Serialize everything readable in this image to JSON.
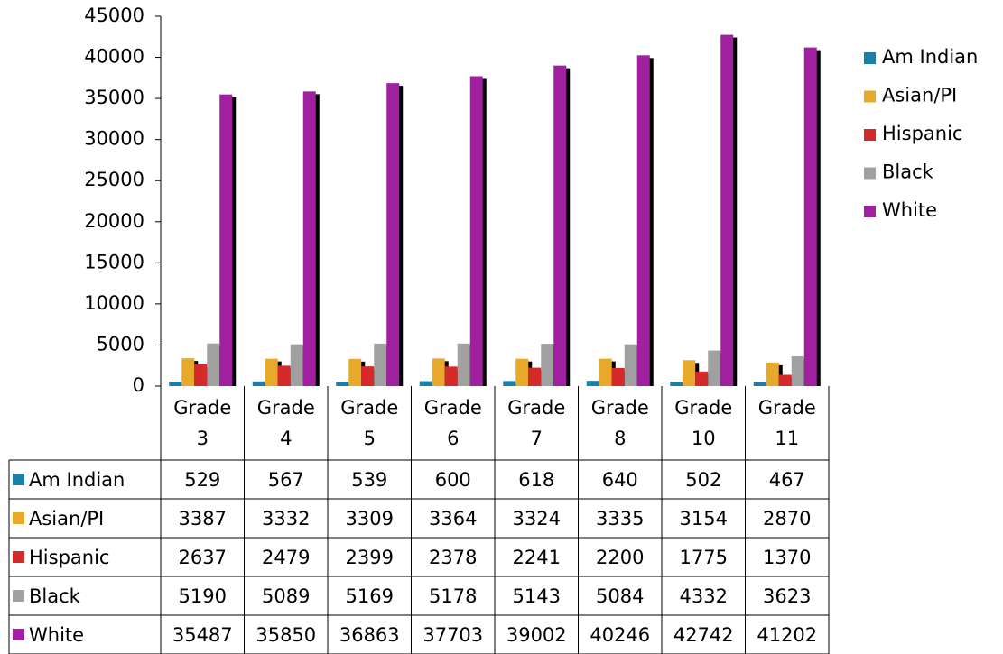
{
  "chart_data": {
    "type": "bar",
    "categories": [
      "Grade 3",
      "Grade 4",
      "Grade 5",
      "Grade 6",
      "Grade 7",
      "Grade 8",
      "Grade 10",
      "Grade 11"
    ],
    "series": [
      {
        "name": "Am Indian",
        "color": "#1b7fab",
        "values": [
          529,
          567,
          539,
          600,
          618,
          640,
          502,
          467
        ]
      },
      {
        "name": "Asian/PI",
        "color": "#e8a82a",
        "values": [
          3387,
          3332,
          3309,
          3364,
          3324,
          3335,
          3154,
          2870
        ]
      },
      {
        "name": "Hispanic",
        "color": "#d42a2a",
        "values": [
          2637,
          2479,
          2399,
          2378,
          2241,
          2200,
          1775,
          1370
        ]
      },
      {
        "name": "Black",
        "color": "#a0a0a0",
        "values": [
          5190,
          5089,
          5169,
          5178,
          5143,
          5084,
          4332,
          3623
        ]
      },
      {
        "name": "White",
        "color": "#a020a0",
        "values": [
          35487,
          35850,
          36863,
          37703,
          39002,
          40246,
          42742,
          41202
        ]
      }
    ],
    "ylim": [
      0,
      45000
    ],
    "yticks": [
      0,
      5000,
      10000,
      15000,
      20000,
      25000,
      30000,
      35000,
      40000,
      45000
    ],
    "legend": "right"
  }
}
